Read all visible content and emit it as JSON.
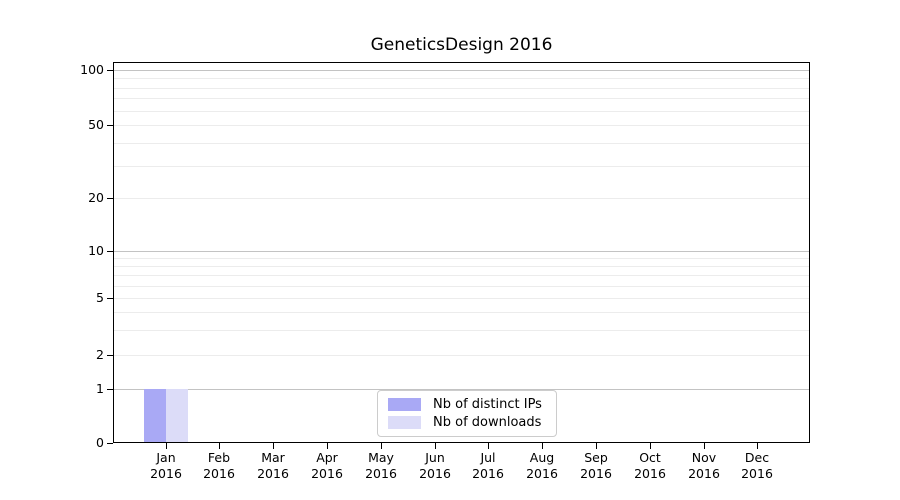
{
  "chart_data": {
    "type": "bar",
    "title": "GeneticsDesign 2016",
    "categories": [
      "Jan 2016",
      "Feb 2016",
      "Mar 2016",
      "Apr 2016",
      "May 2016",
      "Jun 2016",
      "Jul 2016",
      "Aug 2016",
      "Sep 2016",
      "Oct 2016",
      "Nov 2016",
      "Dec 2016"
    ],
    "series": [
      {
        "name": "Nb of distinct IPs",
        "color": "#a9a9f5",
        "values": [
          1,
          0,
          0,
          0,
          0,
          0,
          0,
          0,
          0,
          0,
          0,
          0
        ]
      },
      {
        "name": "Nb of downloads",
        "color": "#dcdcf8",
        "values": [
          1,
          0,
          0,
          0,
          0,
          0,
          0,
          0,
          0,
          0,
          0,
          0
        ]
      }
    ],
    "yscale": "log",
    "yticks": [
      0,
      1,
      2,
      5,
      10,
      20,
      50,
      100
    ],
    "ylim": [
      0,
      100
    ],
    "xlabel": "",
    "ylabel": "",
    "grid": "horizontal, log minor gridlines",
    "legend_position": "bottom-center",
    "colors": {
      "major_grid": "#c3c3c3",
      "minor_grid": "#ececec",
      "axis": "#000000",
      "background": "#ffffff"
    }
  }
}
